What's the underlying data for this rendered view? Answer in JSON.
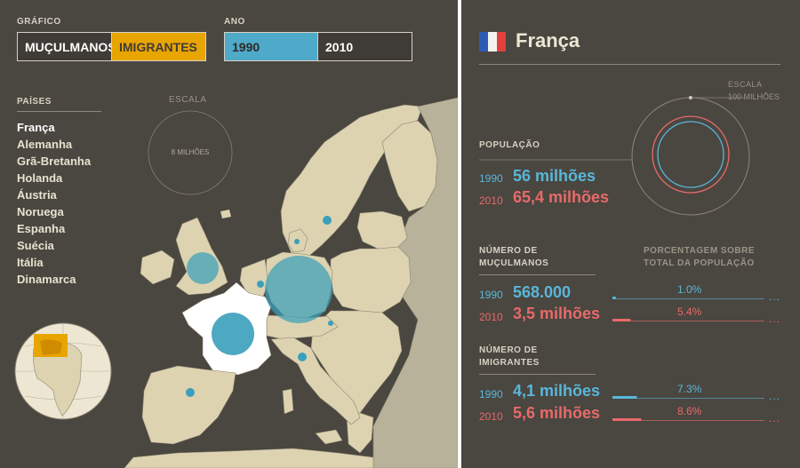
{
  "controls": {
    "grafico_label": "GRÁFICO",
    "grafico_options": [
      "MUÇULMANOS",
      "IMIGRANTES"
    ],
    "ano_label": "ANO",
    "ano_options": [
      "1990",
      "2010"
    ]
  },
  "sidebar": {
    "paises_label": "PAÍSES",
    "countries": [
      "França",
      "Alemanha",
      "Grã-Bretanha",
      "Holanda",
      "Áustria",
      "Noruega",
      "Espanha",
      "Suécia",
      "Itália",
      "Dinamarca"
    ]
  },
  "scale_left": {
    "label": "ESCALA",
    "value": "8 MILHÕES"
  },
  "colors": {
    "background": "#4a4640",
    "land": "#ddd3b1",
    "selected_country": "#ffffff",
    "bubble": "#3a9fba",
    "blue": "#58b7d9",
    "red": "#e86a6a",
    "accent": "#e8a500"
  },
  "detail": {
    "country": "França",
    "flag_icon": "france-flag-icon",
    "scale_label": "ESCALA",
    "scale_value": "100 MILHÕES",
    "populacao_label": "POPULAÇÃO",
    "pop_1990_year": "1990",
    "pop_1990": "56 milhões",
    "pop_2010_year": "2010",
    "pop_2010": "65,4 milhões",
    "muculmanos_label_1": "NÚMERO DE",
    "muculmanos_label_2": "MUÇULMANOS",
    "pct_header_1": "PORCENTAGEM SOBRE",
    "pct_header_2": "TOTAL DA POPULAÇÃO",
    "mus_1990_year": "1990",
    "mus_1990": "568.000",
    "mus_1990_pct": "1.0%",
    "mus_2010_year": "2010",
    "mus_2010": "3,5 milhões",
    "mus_2010_pct": "5.4%",
    "imigrantes_label_1": "NÚMERO DE",
    "imigrantes_label_2": "IMIGRANTES",
    "imi_1990_year": "1990",
    "imi_1990": "4,1 milhões",
    "imi_1990_pct": "7.3%",
    "imi_2010_year": "2010",
    "imi_2010": "5,6 milhões",
    "imi_2010_pct": "8.6%",
    "ellipsis": "...",
    "bar_fractions": {
      "mus_1990": 0.01,
      "mus_2010": 0.054,
      "imi_1990": 0.073,
      "imi_2010": 0.086
    }
  }
}
